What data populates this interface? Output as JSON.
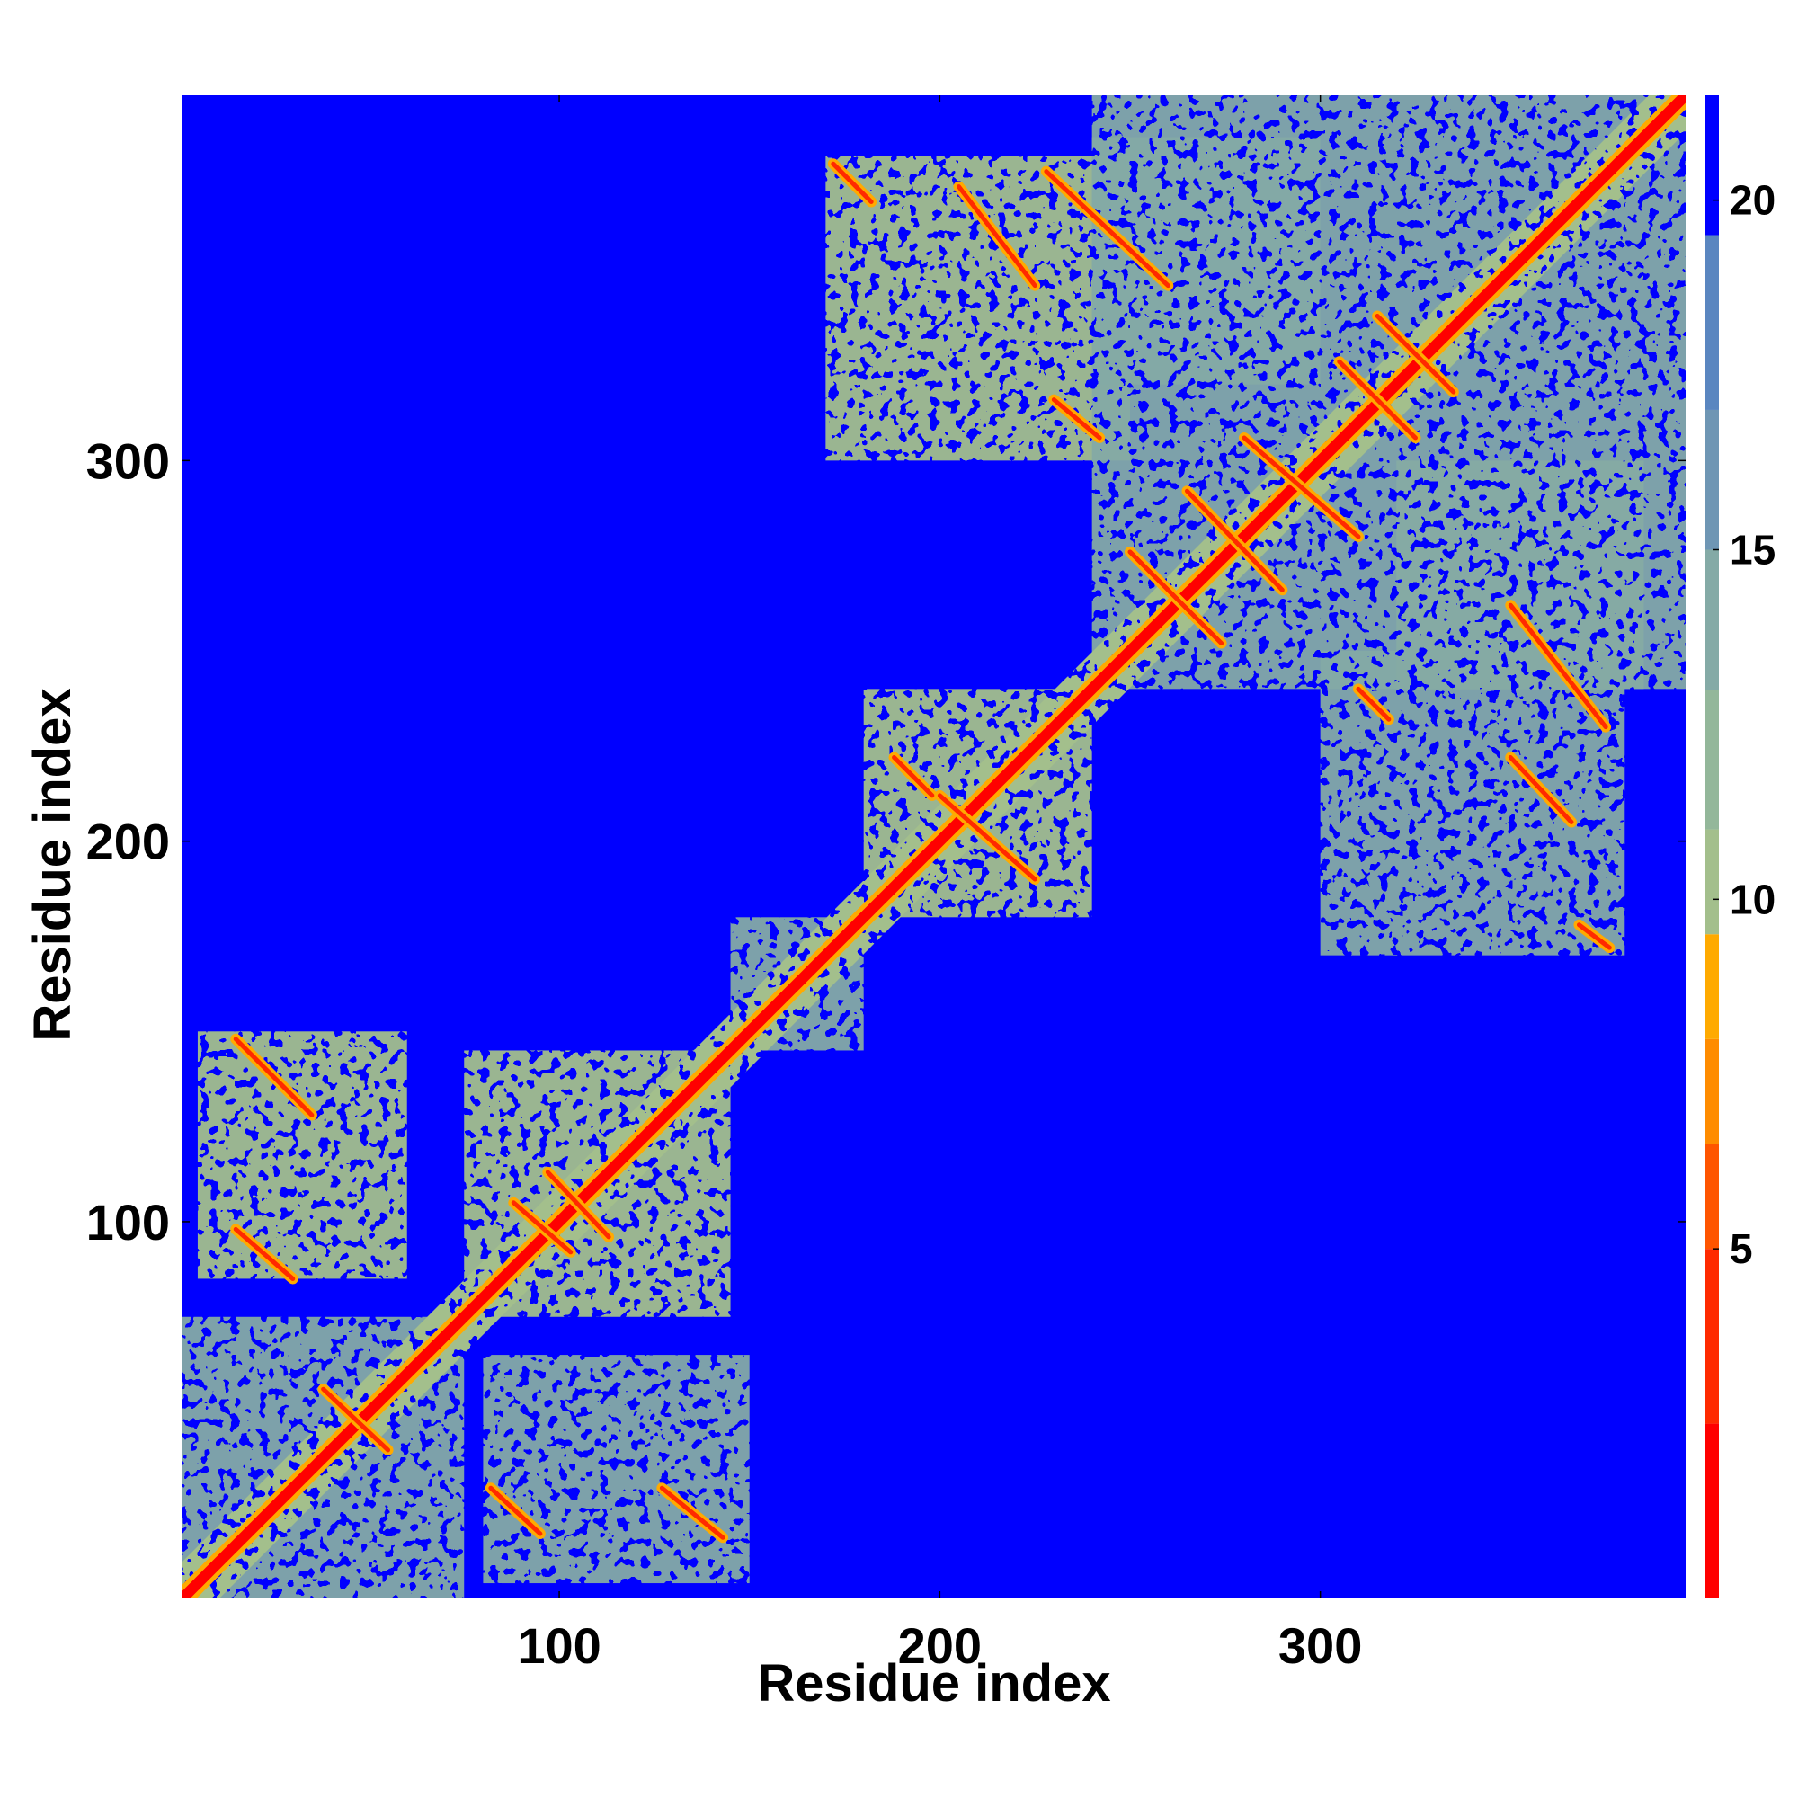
{
  "chart_data": {
    "type": "heatmap",
    "title": "",
    "xlabel": "Residue index",
    "ylabel": "Residue index",
    "xlim": [
      1,
      396
    ],
    "ylim": [
      1,
      396
    ],
    "x_ticks": [
      100,
      200,
      300
    ],
    "y_ticks": [
      100,
      200,
      300
    ],
    "colorbar": {
      "range": [
        0,
        21.5
      ],
      "ticks": [
        5,
        10,
        15,
        20
      ],
      "levels": [
        {
          "from": 0,
          "to": 2.5,
          "color": "#ff0000"
        },
        {
          "from": 2.5,
          "to": 5.0,
          "color": "#ff2a00"
        },
        {
          "from": 5.0,
          "to": 6.5,
          "color": "#ff5500"
        },
        {
          "from": 6.5,
          "to": 8.0,
          "color": "#ff8c00"
        },
        {
          "from": 8.0,
          "to": 9.5,
          "color": "#ffaa00"
        },
        {
          "from": 9.5,
          "to": 11,
          "color": "#a3bf8c"
        },
        {
          "from": 11,
          "to": 13,
          "color": "#93b79a"
        },
        {
          "from": 13,
          "to": 15,
          "color": "#84aaa6"
        },
        {
          "from": 15,
          "to": 17,
          "color": "#6f96b4"
        },
        {
          "from": 17,
          "to": 19.5,
          "color": "#5a86c0"
        },
        {
          "from": 19.5,
          "to": 21.5,
          "color": "#0000ff"
        }
      ]
    },
    "background_color": "#0000ff",
    "diagonal": {
      "from": 1,
      "to": 396,
      "color": "#ff0000"
    },
    "domains": [
      {
        "x": [
          1,
          75
        ],
        "y": [
          1,
          75
        ]
      },
      {
        "x": [
          75,
          145
        ],
        "y": [
          75,
          145
        ]
      },
      {
        "x": [
          145,
          180
        ],
        "y": [
          145,
          180
        ]
      },
      {
        "x": [
          180,
          240
        ],
        "y": [
          180,
          240
        ]
      },
      {
        "x": [
          240,
          396
        ],
        "y": [
          240,
          396
        ]
      }
    ],
    "off_diagonal_blocks": [
      {
        "x": [
          5,
          60
        ],
        "y": [
          85,
          150
        ]
      },
      {
        "x": [
          80,
          150
        ],
        "y": [
          5,
          65
        ]
      },
      {
        "x": [
          170,
          250
        ],
        "y": [
          300,
          380
        ]
      },
      {
        "x": [
          300,
          380
        ],
        "y": [
          170,
          250
        ]
      },
      {
        "x": [
          320,
          385
        ],
        "y": [
          240,
          300
        ]
      },
      {
        "x": [
          240,
          300
        ],
        "y": [
          320,
          385
        ]
      }
    ],
    "contact_strands": [
      {
        "x1": 15,
        "y1": 98,
        "x2": 30,
        "y2": 85
      },
      {
        "x1": 15,
        "y1": 148,
        "x2": 35,
        "y2": 128
      },
      {
        "x1": 82,
        "y1": 30,
        "x2": 95,
        "y2": 18
      },
      {
        "x1": 127,
        "y1": 30,
        "x2": 143,
        "y2": 17
      },
      {
        "x1": 38,
        "y1": 56,
        "x2": 55,
        "y2": 40
      },
      {
        "x1": 88,
        "y1": 105,
        "x2": 103,
        "y2": 92
      },
      {
        "x1": 97,
        "y1": 113,
        "x2": 113,
        "y2": 96
      },
      {
        "x1": 188,
        "y1": 222,
        "x2": 198,
        "y2": 212
      },
      {
        "x1": 200,
        "y1": 212,
        "x2": 225,
        "y2": 190
      },
      {
        "x1": 172,
        "y1": 378,
        "x2": 182,
        "y2": 368
      },
      {
        "x1": 205,
        "y1": 372,
        "x2": 225,
        "y2": 346
      },
      {
        "x1": 228,
        "y1": 376,
        "x2": 260,
        "y2": 346
      },
      {
        "x1": 230,
        "y1": 316,
        "x2": 242,
        "y2": 306
      },
      {
        "x1": 250,
        "y1": 276,
        "x2": 274,
        "y2": 252
      },
      {
        "x1": 265,
        "y1": 292,
        "x2": 290,
        "y2": 266
      },
      {
        "x1": 280,
        "y1": 306,
        "x2": 310,
        "y2": 280
      },
      {
        "x1": 305,
        "y1": 326,
        "x2": 325,
        "y2": 306
      },
      {
        "x1": 315,
        "y1": 338,
        "x2": 335,
        "y2": 318
      },
      {
        "x1": 310,
        "y1": 240,
        "x2": 318,
        "y2": 232
      },
      {
        "x1": 350,
        "y1": 262,
        "x2": 375,
        "y2": 230
      },
      {
        "x1": 350,
        "y1": 222,
        "x2": 366,
        "y2": 205
      },
      {
        "x1": 368,
        "y1": 178,
        "x2": 376,
        "y2": 172
      }
    ]
  }
}
